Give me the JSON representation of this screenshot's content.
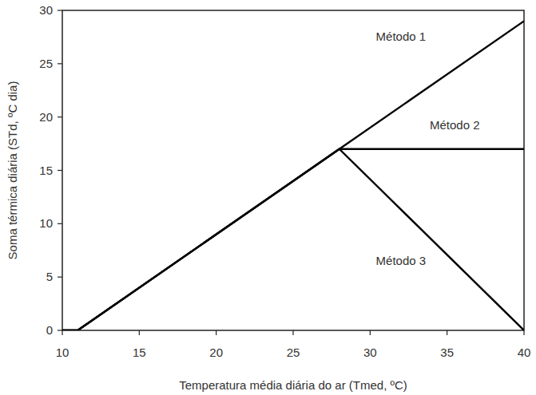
{
  "chart_data": {
    "type": "line",
    "x_label": "Temperatura média diária do ar (Tmed, ºC)",
    "y_label": "Soma térmica diária (STd, ºC dia)",
    "x": [
      10,
      11,
      28,
      40
    ],
    "series": [
      {
        "color": "#000000",
        "values": [
          0,
          0,
          17,
          29
        ]
      },
      {
        "color": "#000000",
        "values": [
          0,
          0,
          17,
          17
        ]
      },
      {
        "color": "#000000",
        "values": [
          0,
          0,
          17,
          0
        ]
      }
    ],
    "annotations": [
      {
        "text": "Método 1",
        "x": 32,
        "y": 27.5
      },
      {
        "text": "Método 2",
        "x": 35.5,
        "y": 19.2
      },
      {
        "text": "Método 3",
        "x": 32,
        "y": 6.5
      }
    ],
    "xlim": [
      10,
      40
    ],
    "ylim": [
      0,
      30
    ],
    "xticks": [
      10,
      15,
      20,
      25,
      30,
      35,
      40
    ],
    "yticks": [
      0,
      5,
      10,
      15,
      20,
      25,
      30
    ],
    "grid": false
  }
}
